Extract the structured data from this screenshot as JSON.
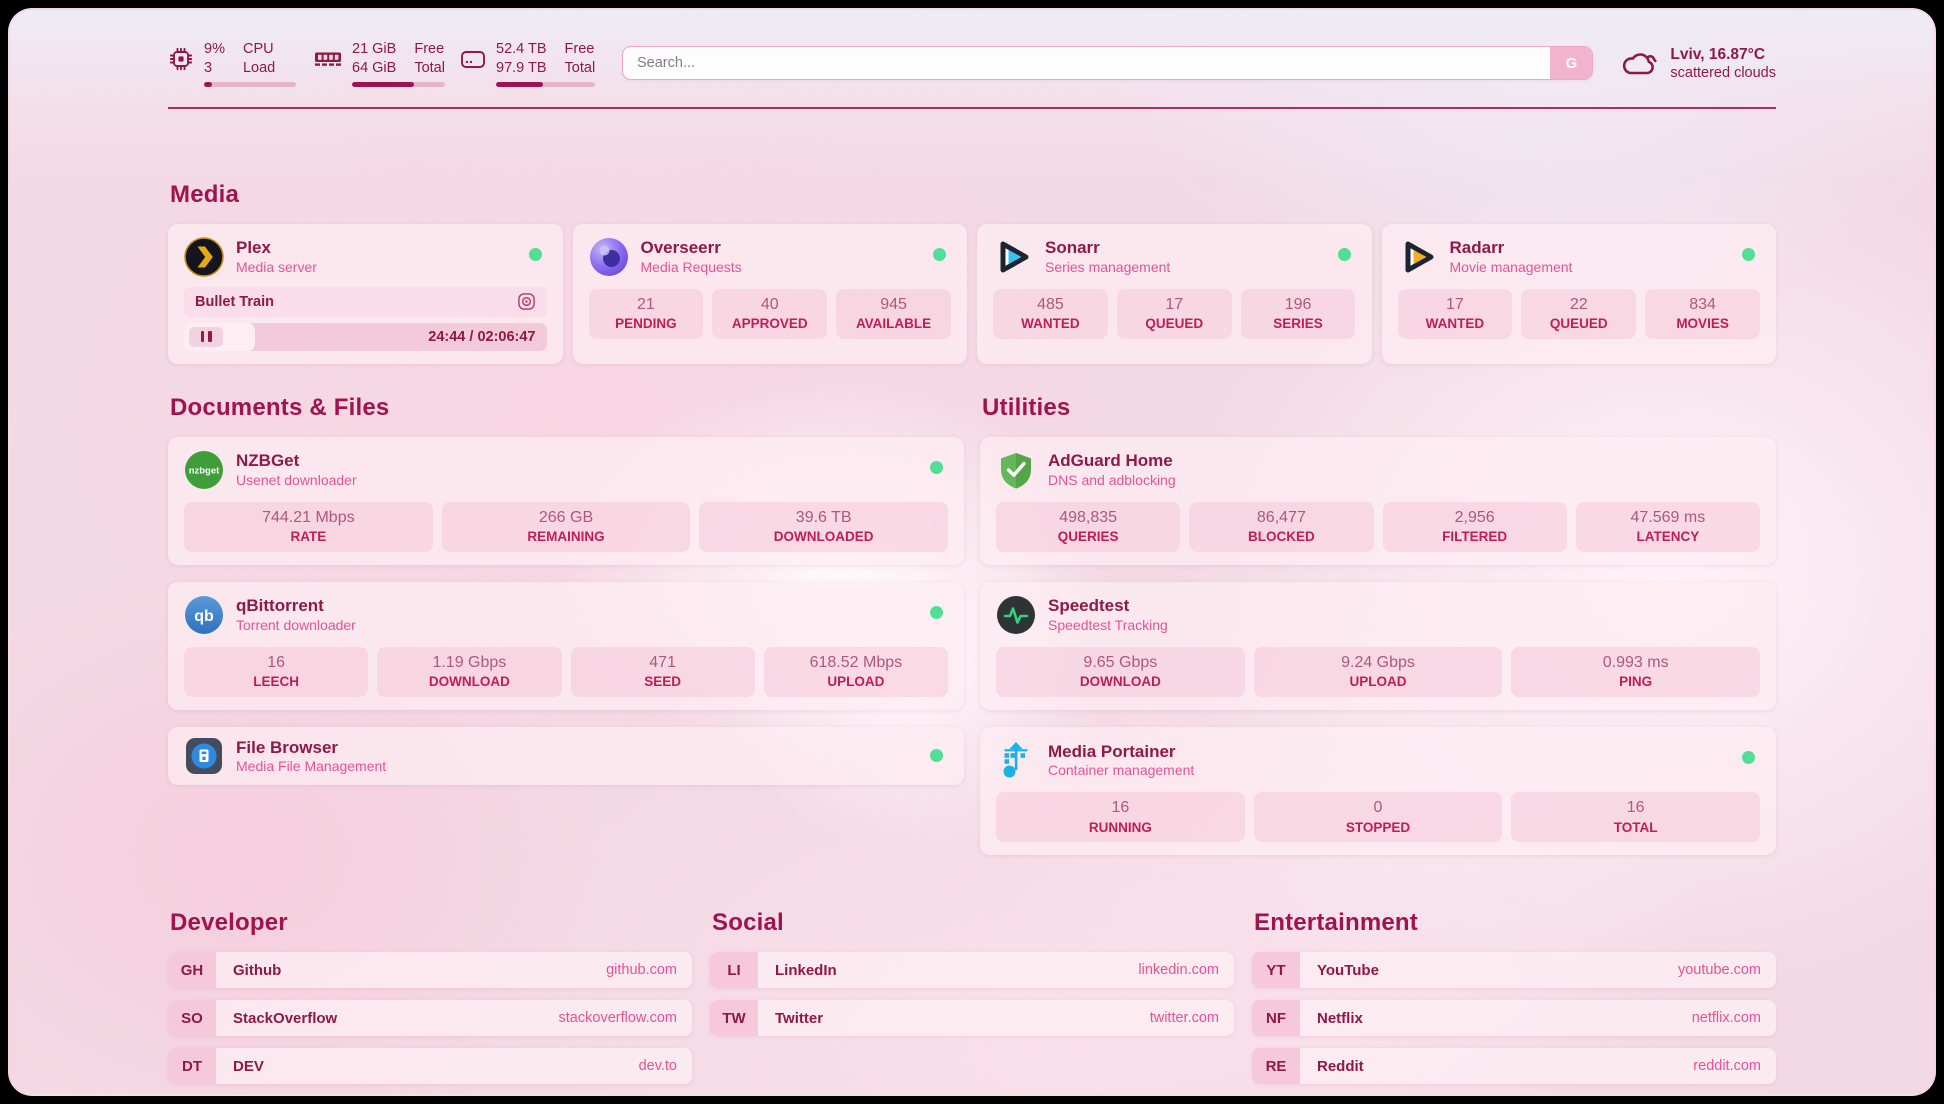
{
  "topbar": {
    "cpu": {
      "value_top": "9%",
      "value_bottom": "3",
      "label_top": "CPU",
      "label_bottom": "Load",
      "bar_percent": 9
    },
    "memory": {
      "value_top": "21 GiB",
      "value_bottom": "64 GiB",
      "label_top": "Free",
      "label_bottom": "Total",
      "bar_percent": 67
    },
    "disk": {
      "value_top": "52.4 TB",
      "value_bottom": "97.9 TB",
      "label_top": "Free",
      "label_bottom": "Total",
      "bar_percent": 47
    },
    "search": {
      "placeholder": "Search...",
      "button_label": "G"
    },
    "weather": {
      "location": "Lviv, 16.87°C",
      "condition": "scattered clouds"
    }
  },
  "media": {
    "header": "Media",
    "plex": {
      "title": "Plex",
      "subtitle": "Media server",
      "status": "online",
      "now_playing": {
        "title": "Bullet Train",
        "time": "24:44 / 02:06:47",
        "progress_percent": 19.5
      }
    },
    "overseerr": {
      "title": "Overseerr",
      "subtitle": "Media Requests",
      "status": "online",
      "stats": [
        {
          "value": "21",
          "label": "PENDING"
        },
        {
          "value": "40",
          "label": "APPROVED"
        },
        {
          "value": "945",
          "label": "AVAILABLE"
        }
      ]
    },
    "sonarr": {
      "title": "Sonarr",
      "subtitle": "Series management",
      "status": "online",
      "stats": [
        {
          "value": "485",
          "label": "WANTED"
        },
        {
          "value": "17",
          "label": "QUEUED"
        },
        {
          "value": "196",
          "label": "SERIES"
        }
      ]
    },
    "radarr": {
      "title": "Radarr",
      "subtitle": "Movie management",
      "status": "online",
      "stats": [
        {
          "value": "17",
          "label": "WANTED"
        },
        {
          "value": "22",
          "label": "QUEUED"
        },
        {
          "value": "834",
          "label": "MOVIES"
        }
      ]
    }
  },
  "documents": {
    "header": "Documents & Files",
    "nzbget": {
      "title": "NZBGet",
      "subtitle": "Usenet downloader",
      "status": "online",
      "stats": [
        {
          "value": "744.21 Mbps",
          "label": "RATE"
        },
        {
          "value": "266 GB",
          "label": "REMAINING"
        },
        {
          "value": "39.6 TB",
          "label": "DOWNLOADED"
        }
      ]
    },
    "qbittorrent": {
      "title": "qBittorrent",
      "subtitle": "Torrent downloader",
      "status": "online",
      "stats": [
        {
          "value": "16",
          "label": "LEECH"
        },
        {
          "value": "1.19 Gbps",
          "label": "DOWNLOAD"
        },
        {
          "value": "471",
          "label": "SEED"
        },
        {
          "value": "618.52 Mbps",
          "label": "UPLOAD"
        }
      ]
    },
    "filebrowser": {
      "title": "File Browser",
      "subtitle": "Media File Management",
      "status": "online"
    }
  },
  "utilities": {
    "header": "Utilities",
    "adguard": {
      "title": "AdGuard Home",
      "subtitle": "DNS and adblocking",
      "stats": [
        {
          "value": "498,835",
          "label": "QUERIES"
        },
        {
          "value": "86,477",
          "label": "BLOCKED"
        },
        {
          "value": "2,956",
          "label": "FILTERED"
        },
        {
          "value": "47.569 ms",
          "label": "LATENCY"
        }
      ]
    },
    "speedtest": {
      "title": "Speedtest",
      "subtitle": "Speedtest Tracking",
      "stats": [
        {
          "value": "9.65 Gbps",
          "label": "DOWNLOAD"
        },
        {
          "value": "9.24 Gbps",
          "label": "UPLOAD"
        },
        {
          "value": "0.993 ms",
          "label": "PING"
        }
      ]
    },
    "portainer": {
      "title": "Media Portainer",
      "subtitle": "Container management",
      "status": "online",
      "stats": [
        {
          "value": "16",
          "label": "RUNNING"
        },
        {
          "value": "0",
          "label": "STOPPED"
        },
        {
          "value": "16",
          "label": "TOTAL"
        }
      ]
    }
  },
  "links": {
    "developer": {
      "header": "Developer",
      "items": [
        {
          "abbr": "GH",
          "name": "Github",
          "url": "github.com"
        },
        {
          "abbr": "SO",
          "name": "StackOverflow",
          "url": "stackoverflow.com"
        },
        {
          "abbr": "DT",
          "name": "DEV",
          "url": "dev.to"
        }
      ]
    },
    "social": {
      "header": "Social",
      "items": [
        {
          "abbr": "LI",
          "name": "LinkedIn",
          "url": "linkedin.com"
        },
        {
          "abbr": "TW",
          "name": "Twitter",
          "url": "twitter.com"
        }
      ]
    },
    "entertainment": {
      "header": "Entertainment",
      "items": [
        {
          "abbr": "YT",
          "name": "YouTube",
          "url": "youtube.com"
        },
        {
          "abbr": "NF",
          "name": "Netflix",
          "url": "netflix.com"
        },
        {
          "abbr": "RE",
          "name": "Reddit",
          "url": "reddit.com"
        }
      ]
    }
  },
  "icons": {
    "nzbget_text": "nzbget",
    "qbittorrent_text": "qb"
  },
  "colors": {
    "accent": "#9c1550",
    "pink": "#e25498",
    "status_online": "#52de97"
  }
}
